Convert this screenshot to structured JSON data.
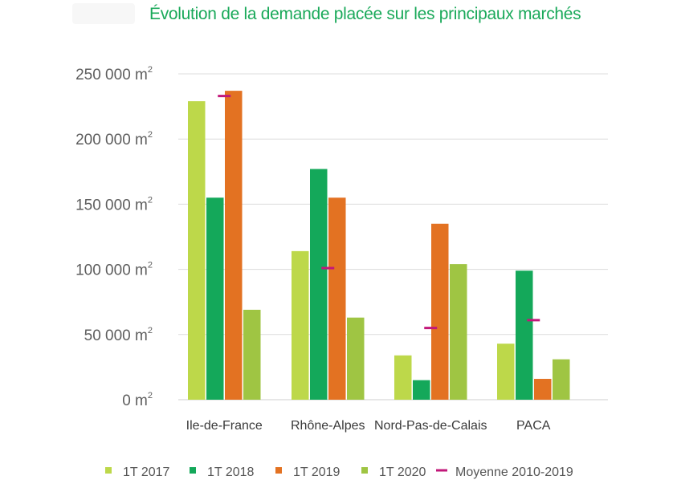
{
  "chart_data": {
    "type": "bar",
    "title": "Évolution de la demande placée sur les principaux marchés",
    "xlabel": "",
    "ylabel": "",
    "ylim": [
      0,
      250000
    ],
    "yticks": [
      0,
      50000,
      100000,
      150000,
      200000,
      250000
    ],
    "ytick_labels": [
      "0 m",
      "50 000 m",
      "100 000 m",
      "150 000 m",
      "200 000 m",
      "250 000 m"
    ],
    "ytick_superscript": "2",
    "categories": [
      "Ile-de-France",
      "Rhône-Alpes",
      "Nord-Pas-de-Calais",
      "PACA"
    ],
    "series": [
      {
        "name": "1T 2017",
        "color": "#bdd84a",
        "values": [
          229000,
          114000,
          34000,
          43000
        ]
      },
      {
        "name": "1T 2018",
        "color": "#14a85a",
        "values": [
          155000,
          177000,
          15000,
          99000
        ]
      },
      {
        "name": "1T 2019",
        "color": "#e37222",
        "values": [
          237000,
          155000,
          135000,
          16000
        ]
      },
      {
        "name": "1T 2020",
        "color": "#9fc543",
        "values": [
          69000,
          63000,
          104000,
          31000
        ]
      }
    ],
    "reference": {
      "name": "Moyenne 2010-2019",
      "color": "#c2187a",
      "values": [
        233000,
        101000,
        55000,
        61000
      ]
    },
    "legend": "bottom",
    "grid": true
  }
}
